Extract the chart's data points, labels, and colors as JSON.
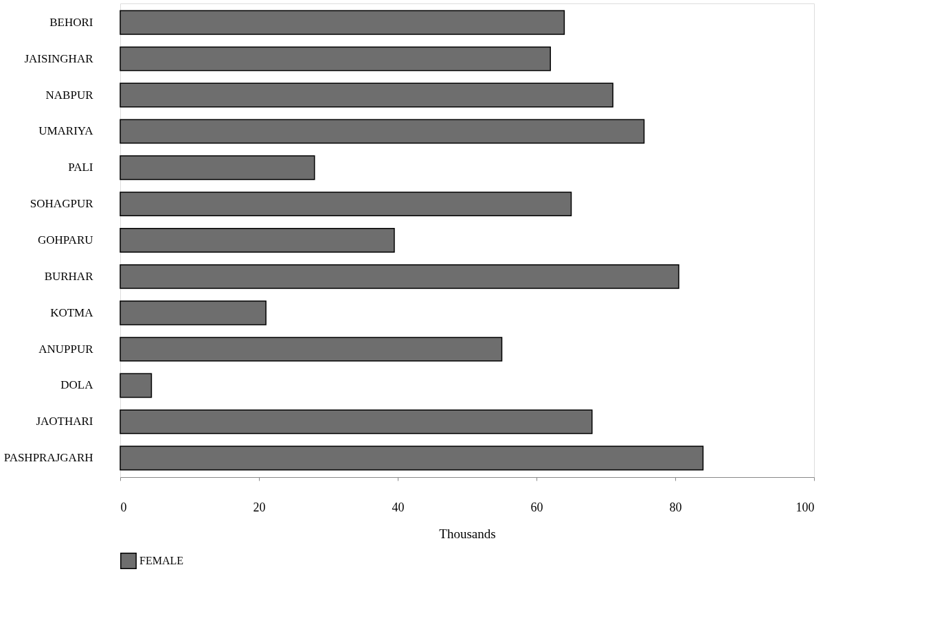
{
  "chart_data": {
    "type": "bar",
    "orientation": "horizontal",
    "xlabel": "Thousands",
    "categories": [
      "BEHORI",
      "JAISINGHAR",
      "NABPUR",
      "UMARIYA",
      "PALI",
      "SOHAGPUR",
      "GOHPARU",
      "BURHAR",
      "KOTMA",
      "ANUPPUR",
      "DOLA",
      "JAOTHARI",
      "PASHPRAJGARH"
    ],
    "series": [
      {
        "name": "FEMALE",
        "color": "#6e6e6e",
        "values": [
          64,
          62,
          71,
          75.5,
          28,
          65,
          39.5,
          80.5,
          21,
          55,
          4.5,
          68,
          84
        ]
      }
    ],
    "xlim": [
      0,
      100
    ],
    "xticks": [
      0,
      20,
      40,
      60,
      80,
      100
    ],
    "grid": false,
    "legend": "bottom"
  }
}
